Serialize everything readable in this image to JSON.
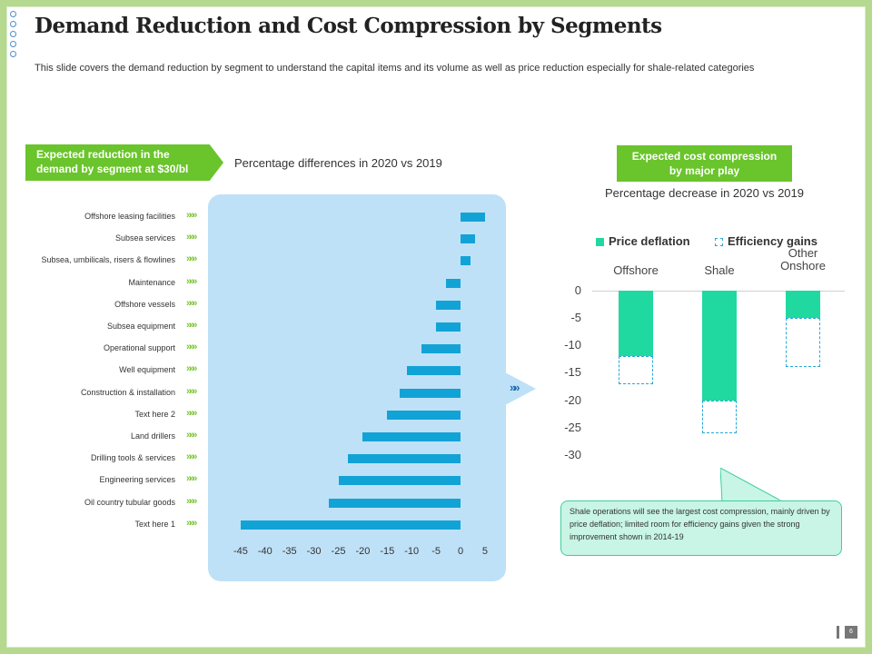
{
  "title": "Demand Reduction and Cost Compression by Segments",
  "subtitle": "This slide covers the demand reduction by segment to understand the capital items and its volume as well as price reduction especially for shale-related categories",
  "left_tag_line1": "Expected reduction in the",
  "left_tag_line2": "demand by segment at $30/bl",
  "left_caption": "Percentage differences in 2020 vs 2019",
  "right_tag_line1": "Expected cost compression",
  "right_tag_line2": "by major play",
  "right_caption": "Percentage decrease in 2020 vs 2019",
  "callout_text": "Shale operations will see the largest cost compression, mainly driven by price deflation; limited room for efficiency gains given the strong improvement shown in 2014-19",
  "page_number": "6",
  "colors": {
    "bar": "#12a3d6",
    "price_deflation": "#1fd9a0",
    "efficiency": "#2aa8d6",
    "accent_green": "#6ac42b"
  },
  "chart_data": [
    {
      "type": "bar",
      "orientation": "horizontal",
      "title": "Percentage differences in 2020 vs 2019",
      "categories": [
        "Offshore leasing facilities",
        "Subsea services",
        "Subsea, umbilicals, risers & flowlines",
        "Maintenance",
        "Offshore vessels",
        "Subsea equipment",
        "Operational support",
        "Well equipment",
        "Construction & installation",
        "Text here 2",
        "Land drillers",
        "Drilling tools & services",
        "Engineering services",
        "Oil country tubular goods",
        "Text here 1"
      ],
      "values": [
        5,
        3,
        2,
        -3,
        -5,
        -5,
        -8,
        -11,
        -12.5,
        -15,
        -20,
        -23,
        -25,
        -27,
        -45
      ],
      "xticks": [
        "-45",
        "-40",
        "-35",
        "-30",
        "-25",
        "-20",
        "-15",
        "-10",
        "-5",
        "0",
        "5"
      ],
      "xlim": [
        -45,
        5
      ]
    },
    {
      "type": "bar",
      "stacked": true,
      "title": "Percentage decrease in 2020 vs 2019",
      "categories": [
        "Offshore",
        "Shale",
        "Other Onshore"
      ],
      "series": [
        {
          "name": "Price deflation",
          "values": [
            -12,
            -20,
            -5
          ]
        },
        {
          "name": "Efficiency gains",
          "values": [
            -5,
            -6,
            -9
          ]
        }
      ],
      "yticks": [
        "0",
        "-5",
        "-10",
        "-15",
        "-20",
        "-25",
        "-30"
      ],
      "ylim": [
        -30,
        0
      ]
    }
  ]
}
